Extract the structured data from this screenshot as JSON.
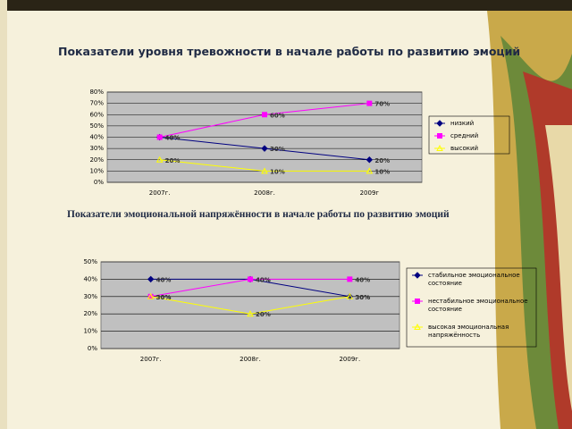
{
  "chart_data": [
    {
      "type": "line",
      "title": "Показатели уровня тревожности в начале работы по развитию эмоций",
      "categories": [
        "2007г.",
        "2008г.",
        "2009г"
      ],
      "ylim": [
        0,
        80
      ],
      "yticks": [
        {
          "value": 0,
          "label": "0%"
        },
        {
          "value": 10,
          "label": "10%"
        },
        {
          "value": 20,
          "label": "20%"
        },
        {
          "value": 30,
          "label": "30%"
        },
        {
          "value": 40,
          "label": "40%"
        },
        {
          "value": 50,
          "label": "50%"
        },
        {
          "value": 60,
          "label": "60%"
        },
        {
          "value": 70,
          "label": "70%"
        },
        {
          "value": 80,
          "label": "80%"
        }
      ],
      "grid": true,
      "legend": "right",
      "series": [
        {
          "name": "низкий",
          "color": "#000080",
          "marker": "diamond",
          "values": [
            40,
            30,
            20
          ],
          "value_labels": [
            "40%",
            "30%",
            "20%"
          ]
        },
        {
          "name": "средний",
          "color": "#ff00ff",
          "marker": "square",
          "values": [
            40,
            60,
            70
          ],
          "value_labels": [
            "40%",
            "60%",
            "70%"
          ]
        },
        {
          "name": "высокий",
          "color": "#ffff00",
          "marker": "triangle",
          "values": [
            20,
            10,
            10
          ],
          "value_labels": [
            "20%",
            "10%",
            "10%"
          ]
        }
      ]
    },
    {
      "type": "line",
      "title": "Показатели эмоциональной напряжённости в начале работы по развитию эмоций",
      "categories": [
        "2007г.",
        "2008г.",
        "2009г."
      ],
      "ylim": [
        0,
        50
      ],
      "yticks": [
        {
          "value": 0,
          "label": "0%"
        },
        {
          "value": 10,
          "label": "10%"
        },
        {
          "value": 20,
          "label": "20%"
        },
        {
          "value": 30,
          "label": "30%"
        },
        {
          "value": 40,
          "label": "40%"
        },
        {
          "value": 50,
          "label": "50%"
        }
      ],
      "grid": true,
      "legend": "right",
      "series": [
        {
          "name": "стабильное эмоциональное состояние",
          "color": "#000080",
          "marker": "diamond",
          "values": [
            40,
            40,
            30
          ],
          "value_labels": [
            "40%",
            "40%",
            "30%"
          ]
        },
        {
          "name": "нестабильное эмоциональное состояние",
          "color": "#ff00ff",
          "marker": "square",
          "values": [
            30,
            40,
            40
          ],
          "value_labels": [
            "30%",
            "40%",
            "40%"
          ]
        },
        {
          "name": "высокая эмоциональная напряжённость",
          "color": "#ffff00",
          "marker": "triangle",
          "values": [
            30,
            20,
            30
          ],
          "value_labels": [
            "30%",
            "20%",
            "30%"
          ]
        }
      ]
    }
  ]
}
